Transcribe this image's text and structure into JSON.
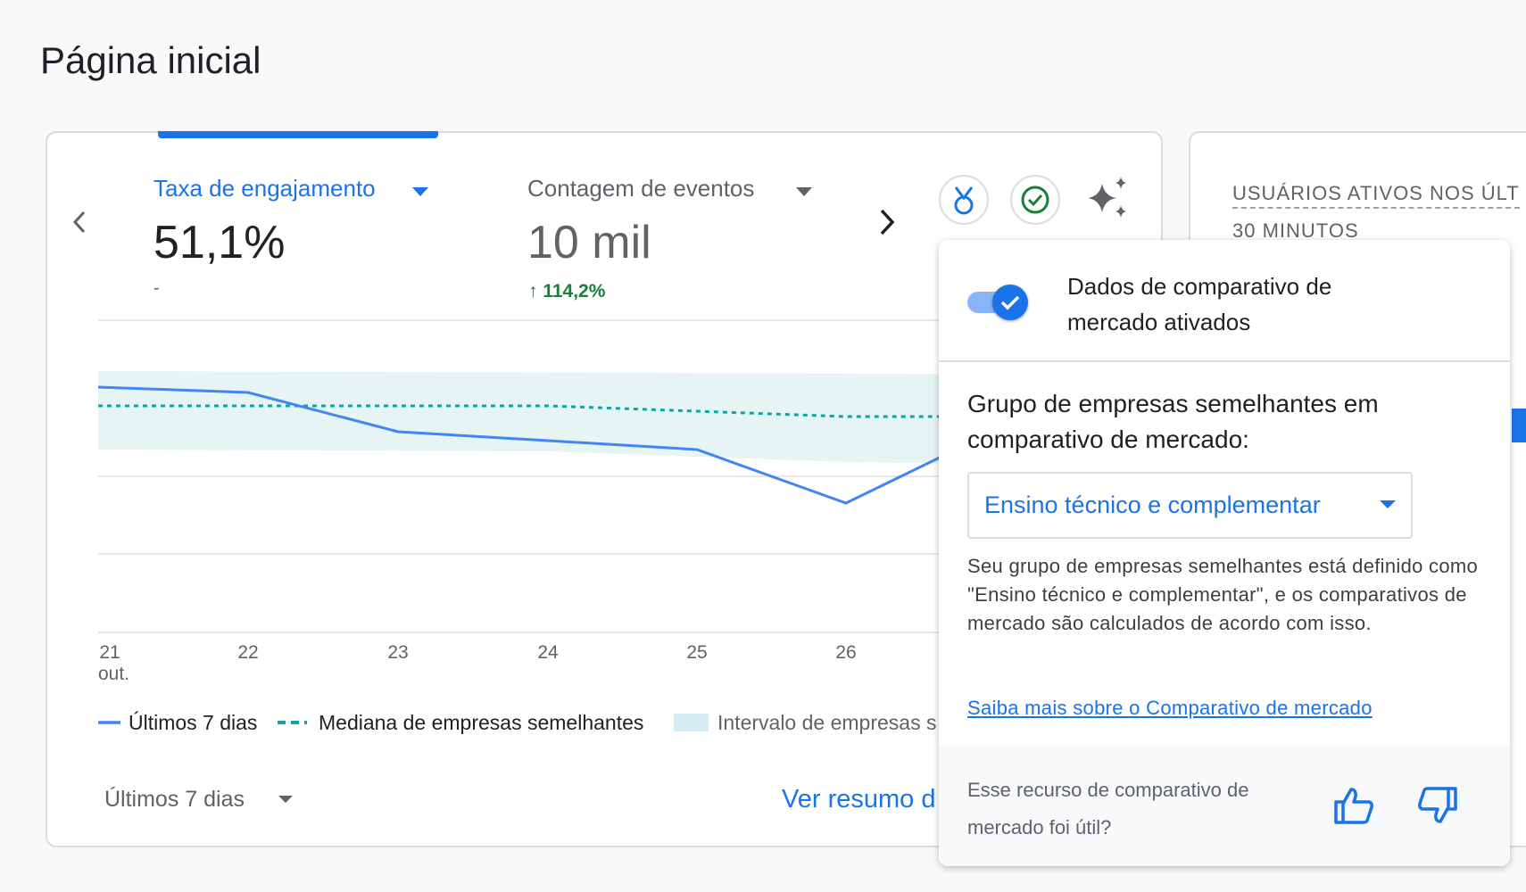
{
  "header": {
    "title": "Página inicial"
  },
  "card": {
    "metrics": [
      {
        "label": "Taxa de engajamento",
        "value": "51,1%",
        "change": "-"
      },
      {
        "label": "Contagem de eventos",
        "value": "10 mil",
        "change": "114,2%"
      }
    ],
    "x_labels": [
      "21",
      "22",
      "23",
      "24",
      "25",
      "26"
    ],
    "x_sublabel": "out.",
    "legend": [
      "Últimos 7 dias",
      "Mediana de empresas semelhantes",
      "Intervalo de empresas s"
    ],
    "date_range": "Últimos 7 dias",
    "link": "Ver resumo d"
  },
  "side_card": {
    "title": "USUÁRIOS ATIVOS NOS ÚLT",
    "subtitle": "30 MINUTOS"
  },
  "popup": {
    "toggle_label": "Dados de comparativo de mercado ativados",
    "group_title": "Grupo de empresas semelhantes em comparativo de mercado:",
    "dropdown": "Ensino técnico e complementar",
    "description": "Seu grupo de empresas semelhantes está definido como \"Ensino técnico e complementar\", e os comparativos de mercado são calculados de acordo com isso.",
    "link": "Saiba mais sobre o Comparativo de mercado",
    "feedback": "Esse recurso de comparativo de mercado foi útil?"
  }
}
